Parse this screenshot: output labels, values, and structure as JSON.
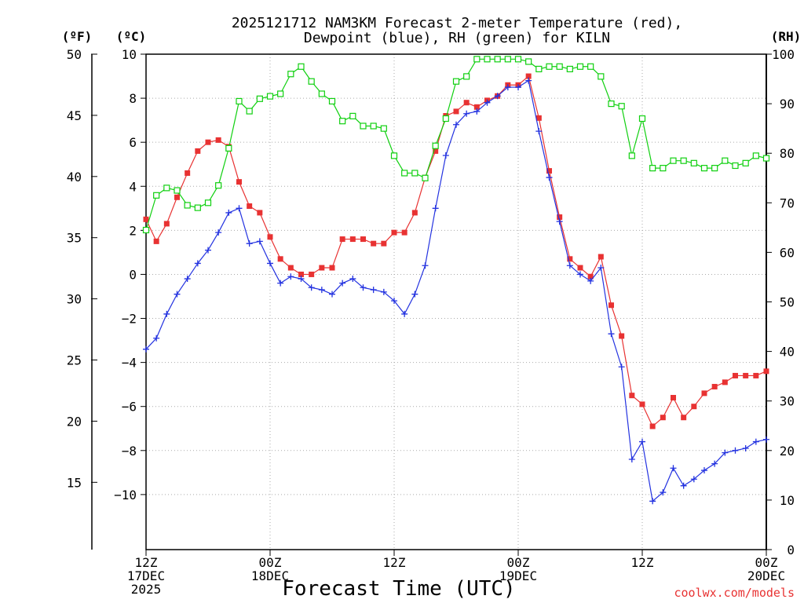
{
  "chart_data": {
    "type": "line",
    "title_line1": "2025121712 NAM3KM Forecast 2-meter Temperature (red),",
    "title_line2": "Dewpoint (blue), RH (green) for KILN",
    "unit_f": "(ºF)",
    "unit_c": "(ºC)",
    "unit_rh": "(RH)",
    "xlabel": "Forecast Time (UTC)",
    "credit": "coolwx.com/models",
    "x_ticks": [
      {
        "hour": 0,
        "lines": [
          "12Z",
          "17DEC",
          "2025"
        ]
      },
      {
        "hour": 12,
        "lines": [
          "00Z",
          "18DEC"
        ]
      },
      {
        "hour": 24,
        "lines": [
          "12Z"
        ]
      },
      {
        "hour": 36,
        "lines": [
          "00Z",
          "19DEC"
        ]
      },
      {
        "hour": 48,
        "lines": [
          "12Z"
        ]
      },
      {
        "hour": 60,
        "lines": [
          "00Z",
          "20DEC"
        ]
      }
    ],
    "xlim": [
      0,
      60
    ],
    "ylim_c": [
      -12.5,
      10
    ],
    "yticks_c": [
      "10",
      "8",
      "6",
      "4",
      "2",
      "0",
      "−2",
      "−4",
      "−6",
      "−8",
      "−10"
    ],
    "yticks_f": [
      "50",
      "45",
      "40",
      "35",
      "30",
      "25",
      "20",
      "15"
    ],
    "ylim_rh": [
      0,
      100
    ],
    "yticks_rh": [
      "100",
      "90",
      "80",
      "70",
      "60",
      "50",
      "40",
      "30",
      "20",
      "10",
      "0"
    ],
    "colors": {
      "temperature": "#e83232",
      "dewpoint": "#2332e0",
      "rh": "#10d010",
      "grid": "#aaaaaa",
      "credit": "#e83232"
    },
    "series": [
      {
        "name": "Temperature (°C)",
        "axis": "c",
        "values": [
          2.5,
          1.5,
          2.3,
          3.5,
          4.6,
          5.6,
          6.0,
          6.1,
          5.8,
          4.2,
          3.1,
          2.8,
          1.7,
          0.7,
          0.3,
          0.0,
          0.0,
          0.3,
          0.3,
          1.6,
          1.6,
          1.6,
          1.4,
          1.4,
          1.9,
          1.9,
          2.8,
          4.4,
          5.6,
          7.2,
          7.4,
          7.8,
          7.6,
          7.9,
          8.1,
          8.6,
          8.6,
          9.0,
          7.1,
          4.7,
          2.6,
          0.7,
          0.3,
          -0.1,
          0.8,
          -1.4,
          -2.8,
          -5.5,
          -5.9,
          -6.9,
          -6.5,
          -5.6,
          -6.5,
          -6.0,
          -5.4,
          -5.1,
          -4.9,
          -4.6,
          -4.6,
          -4.6,
          -4.4
        ]
      },
      {
        "name": "Dewpoint (°C)",
        "axis": "c",
        "values": [
          -3.4,
          -2.9,
          -1.8,
          -0.9,
          -0.2,
          0.5,
          1.1,
          1.9,
          2.8,
          3.0,
          1.4,
          1.5,
          0.5,
          -0.4,
          -0.1,
          -0.2,
          -0.6,
          -0.7,
          -0.9,
          -0.4,
          -0.2,
          -0.6,
          -0.7,
          -0.8,
          -1.2,
          -1.8,
          -0.9,
          0.4,
          3.0,
          5.4,
          6.8,
          7.3,
          7.4,
          7.8,
          8.1,
          8.5,
          8.5,
          8.8,
          6.5,
          4.4,
          2.4,
          0.4,
          0.0,
          -0.3,
          0.3,
          -2.7,
          -4.2,
          -8.4,
          -7.6,
          -10.3,
          -9.9,
          -8.8,
          -9.6,
          -9.3,
          -8.9,
          -8.6,
          -8.1,
          -8.0,
          -7.9,
          -7.6,
          -7.5
        ]
      },
      {
        "name": "RH (%)",
        "axis": "rh",
        "values": [
          64.5,
          71.5,
          73,
          72.5,
          69.5,
          69,
          70,
          73.5,
          81,
          90.5,
          88.5,
          91,
          91.5,
          92,
          96,
          97.5,
          94.5,
          92,
          90.5,
          86.5,
          87.5,
          85.5,
          85.5,
          85,
          79.5,
          76,
          76,
          75,
          81.5,
          87,
          94.5,
          95.5,
          99,
          99,
          99,
          99,
          99,
          98.5,
          97,
          97.5,
          97.5,
          97,
          97.5,
          97.5,
          95.5,
          90,
          89.5,
          79.5,
          87,
          77,
          77,
          78.5,
          78.5,
          78,
          77,
          77,
          78.5,
          77.5,
          78,
          79.5,
          79
        ]
      }
    ]
  }
}
